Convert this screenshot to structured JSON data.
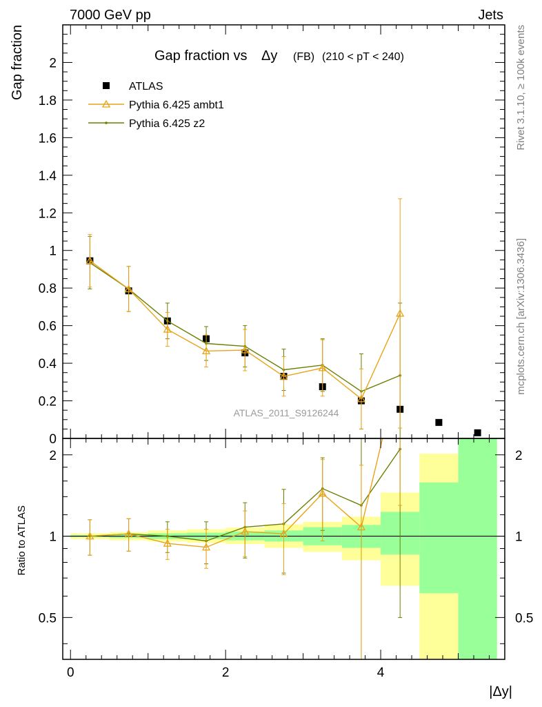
{
  "header": {
    "left": "7000 GeV pp",
    "right": "Jets",
    "side_top": "Rivet 3.1.10, ≥ 100k events",
    "side_bottom": "mcplots.cern.ch [arXiv:1306.3436]"
  },
  "chart_data": {
    "type": "scatter",
    "title": "Gap fraction vs",
    "title_symbol": "Δy",
    "title_suffix": "(FB)",
    "title_range": "(210 < pT < 240)",
    "watermark": "ATLAS_2011_S9126244",
    "xlabel": "|Δy|",
    "ylabel": "Gap fraction",
    "ratio_ylabel": "Ratio to ATLAS",
    "xlim": [
      -0.1,
      5.6
    ],
    "ylim": [
      0,
      2.2
    ],
    "ratio_ylim": [
      0.35,
      2.3
    ],
    "x_ticks": [
      "0",
      "2",
      "4"
    ],
    "y_ticks": [
      "0",
      "0.2",
      "0.4",
      "0.6",
      "0.8",
      "1",
      "1.2",
      "1.4",
      "1.6",
      "1.8",
      "2"
    ],
    "ratio_ticks": [
      "0.5",
      "1",
      "2"
    ],
    "x_edges": [
      0,
      0.5,
      1,
      1.5,
      2,
      2.5,
      3,
      3.5,
      4,
      4.5,
      5,
      5.5
    ],
    "legend_position": "top-left",
    "series": [
      {
        "name": "ATLAS",
        "color": "#000000",
        "marker": "square",
        "x": [
          0.25,
          0.75,
          1.25,
          1.75,
          2.25,
          2.75,
          3.25,
          3.75,
          4.25,
          4.75,
          5.25
        ],
        "y": [
          0.945,
          0.785,
          0.625,
          0.53,
          0.455,
          0.33,
          0.275,
          0.2,
          0.155,
          0.085,
          0.03
        ]
      },
      {
        "name": "Pythia 6.425 ambt1",
        "color": "#e8a317",
        "marker": "triangle",
        "x": [
          0.25,
          0.75,
          1.25,
          1.75,
          2.25,
          2.75,
          3.25,
          3.75,
          4.25
        ],
        "y": [
          0.945,
          0.795,
          0.58,
          0.465,
          0.47,
          0.33,
          0.375,
          0.21,
          0.665
        ],
        "err": [
          0.14,
          0.12,
          0.09,
          0.085,
          0.11,
          0.105,
          0.15,
          0.16,
          0.61
        ],
        "ratio": [
          1.0,
          1.02,
          0.94,
          0.91,
          1.04,
          1.02,
          1.44,
          1.08,
          4.3
        ],
        "ratio_err": [
          0.15,
          0.14,
          0.12,
          0.15,
          0.2,
          0.3,
          0.48,
          0.75,
          3.0
        ]
      },
      {
        "name": "Pythia 6.425 z2",
        "color": "#6b7f00",
        "marker": "dot",
        "x": [
          0.25,
          0.75,
          1.25,
          1.75,
          2.25,
          2.75,
          3.25,
          3.75,
          4.25
        ],
        "y": [
          0.935,
          0.795,
          0.625,
          0.505,
          0.49,
          0.365,
          0.39,
          0.25,
          0.335
        ],
        "err": [
          0.14,
          0.12,
          0.095,
          0.09,
          0.11,
          0.11,
          0.14,
          0.2,
          0.385
        ],
        "ratio": [
          1.0,
          1.02,
          1.0,
          0.96,
          1.08,
          1.11,
          1.5,
          1.3,
          2.1
        ],
        "ratio_err": [
          0.15,
          0.14,
          0.13,
          0.17,
          0.25,
          0.38,
          0.45,
          1.0,
          1.6
        ]
      }
    ],
    "ratio_bands": {
      "stat_color": "#99ff99",
      "total_color": "#ffff99",
      "stat": [
        [
          0.992,
          1.008
        ],
        [
          0.985,
          1.015
        ],
        [
          0.975,
          1.025
        ],
        [
          0.975,
          1.03
        ],
        [
          0.965,
          1.04
        ],
        [
          0.955,
          1.05
        ],
        [
          0.925,
          1.08
        ],
        [
          0.905,
          1.1
        ],
        [
          0.855,
          1.23
        ],
        [
          0.615,
          1.58
        ],
        [
          0.35,
          2.3
        ]
      ],
      "total": [
        [
          0.975,
          1.025
        ],
        [
          0.965,
          1.035
        ],
        [
          0.955,
          1.05
        ],
        [
          0.945,
          1.06
        ],
        [
          0.935,
          1.075
        ],
        [
          0.905,
          1.105
        ],
        [
          0.875,
          1.13
        ],
        [
          0.815,
          1.18
        ],
        [
          0.655,
          1.45
        ],
        [
          0.35,
          2.02
        ],
        [
          0.35,
          2.3
        ]
      ]
    }
  }
}
